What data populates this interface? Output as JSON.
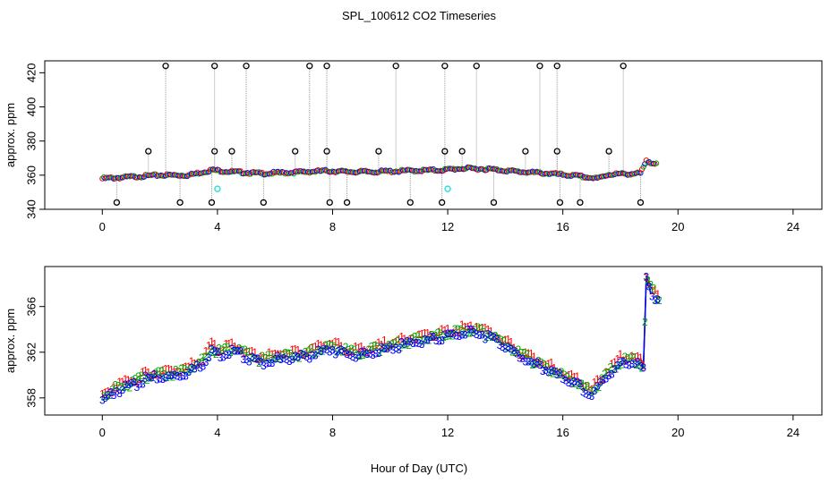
{
  "chart_data": [
    {
      "type": "scatter",
      "title": "SPL_100612  CO2 Timeseries",
      "xlabel": "",
      "ylabel": "approx. ppm",
      "xlim": [
        -2,
        25
      ],
      "ylim": [
        340,
        427
      ],
      "x_ticks": [
        "0",
        "4",
        "8",
        "12",
        "16",
        "20",
        "24"
      ],
      "y_ticks": [
        "340",
        "360",
        "380",
        "400",
        "420"
      ],
      "baseline_series": {
        "name": "co2",
        "points": [
          [
            0,
            358
          ],
          [
            1,
            359
          ],
          [
            2,
            360
          ],
          [
            3,
            360
          ],
          [
            3.8,
            363
          ],
          [
            4.5,
            362
          ],
          [
            5.5,
            361
          ],
          [
            6.5,
            361.5
          ],
          [
            7.8,
            362.5
          ],
          [
            8.5,
            362
          ],
          [
            9.5,
            362
          ],
          [
            10.5,
            362.5
          ],
          [
            11.8,
            363
          ],
          [
            12.5,
            364
          ],
          [
            13.5,
            363.5
          ],
          [
            14.5,
            362
          ],
          [
            15.5,
            361
          ],
          [
            16.5,
            359.5
          ],
          [
            17.2,
            358
          ],
          [
            17.6,
            360.5
          ],
          [
            18.7,
            361
          ],
          [
            18.9,
            368
          ],
          [
            19.3,
            367
          ]
        ]
      },
      "outliers_high": [
        2.2,
        3.9,
        5.0,
        7.2,
        7.8,
        10.2,
        11.9,
        13.0,
        15.2,
        15.8,
        18.1
      ],
      "outliers_mid": [
        1.6,
        3.9,
        4.5,
        6.7,
        7.8,
        9.6,
        11.9,
        12.5,
        14.7,
        15.8,
        17.6
      ],
      "outliers_low": [
        0.5,
        2.7,
        3.8,
        5.6,
        7.9,
        8.5,
        10.7,
        11.8,
        13.6,
        15.9,
        16.6,
        18.7
      ],
      "outlier_values": {
        "high": 424,
        "mid": 374,
        "low": 344
      },
      "cyan_points": [
        [
          4.0,
          352
        ],
        [
          12.0,
          352
        ]
      ]
    },
    {
      "type": "scatter",
      "title": "",
      "xlabel": "Hour of Day (UTC)",
      "ylabel": "approx. ppm",
      "xlim": [
        -2,
        25
      ],
      "ylim": [
        356.5,
        369.5
      ],
      "x_ticks": [
        "0",
        "4",
        "8",
        "12",
        "16",
        "20",
        "24"
      ],
      "y_ticks": [
        "358",
        "362",
        "366"
      ],
      "series": [
        {
          "name": "1",
          "color": "#ff0000",
          "offset": 0.5
        },
        {
          "name": "2",
          "color": "#00aa00",
          "offset": 0.25
        },
        {
          "name": "3",
          "color": "#0000ff",
          "offset": 0.0
        }
      ],
      "baseline": [
        [
          0,
          357.8
        ],
        [
          0.5,
          358.6
        ],
        [
          1,
          359
        ],
        [
          1.5,
          359.6
        ],
        [
          2,
          359.8
        ],
        [
          2.5,
          359.9
        ],
        [
          3,
          360.2
        ],
        [
          3.5,
          361
        ],
        [
          3.8,
          362.2
        ],
        [
          4,
          361.8
        ],
        [
          4.5,
          362
        ],
        [
          5,
          361.6
        ],
        [
          5.5,
          361.1
        ],
        [
          6,
          361.3
        ],
        [
          6.5,
          361.4
        ],
        [
          7,
          361.6
        ],
        [
          7.5,
          361.9
        ],
        [
          7.85,
          362.3
        ],
        [
          8,
          362.2
        ],
        [
          8.5,
          361.8
        ],
        [
          9,
          361.7
        ],
        [
          9.5,
          362
        ],
        [
          10,
          362.3
        ],
        [
          10.5,
          362.6
        ],
        [
          11,
          362.9
        ],
        [
          11.6,
          363.1
        ],
        [
          12,
          363.4
        ],
        [
          12.5,
          363.6
        ],
        [
          13,
          363.7
        ],
        [
          13.5,
          363.3
        ],
        [
          14,
          362.5
        ],
        [
          14.5,
          361.6
        ],
        [
          15,
          360.9
        ],
        [
          15.5,
          360.4
        ],
        [
          16,
          359.7
        ],
        [
          16.5,
          359.1
        ],
        [
          17,
          358.2
        ],
        [
          17.5,
          359.8
        ],
        [
          18,
          361
        ],
        [
          18.5,
          361
        ],
        [
          18.8,
          360.5
        ],
        [
          18.9,
          368.3
        ],
        [
          19.1,
          367.2
        ],
        [
          19.3,
          366.5
        ]
      ]
    }
  ]
}
